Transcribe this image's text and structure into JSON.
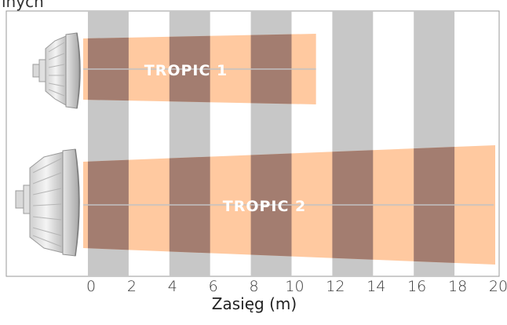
{
  "header": {
    "partial_text": "inych"
  },
  "diagram": {
    "range_min": 0,
    "range_max": 20,
    "stripe_period": 4,
    "stripe_width": 2,
    "tick_labels": [
      "0",
      "2",
      "4",
      "6",
      "8",
      "10",
      "12",
      "14",
      "16",
      "18",
      "20"
    ],
    "axis_label": "Zasięg (m)",
    "colors": {
      "stripe": "#c7c7c7",
      "beam": "#ffc9a0",
      "beam_over_stripe": "#a37d70",
      "centerline": "#c2c2c2",
      "label": "#ffffff",
      "frame": "#9a9a9a",
      "axis_text": "#3a3a3a"
    },
    "beams": [
      {
        "name": "TROPIC 1",
        "length": 11.2,
        "icon": "tropic-1-lamp-icon"
      },
      {
        "name": "TROPIC 2",
        "length": 20.0,
        "icon": "tropic-2-lamp-icon"
      }
    ]
  }
}
